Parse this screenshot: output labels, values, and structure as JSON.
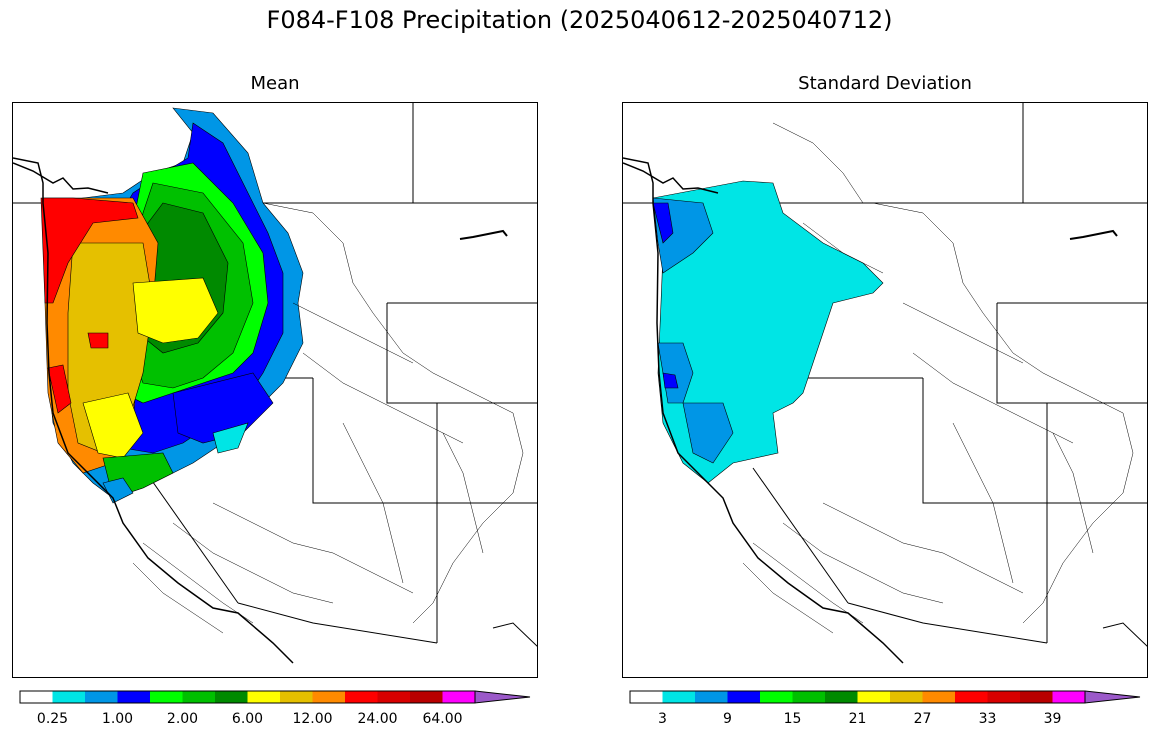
{
  "title": "F084-F108 Precipitation (2025040612-2025040712)",
  "panels": [
    {
      "title": "Mean"
    },
    {
      "title": "Standard Deviation"
    }
  ],
  "palette": [
    "#ffffff",
    "#00e5e5",
    "#0096e6",
    "#0000ff",
    "#00ff00",
    "#00c000",
    "#008a00",
    "#ffff00",
    "#e5c000",
    "#ff8a00",
    "#ff0000",
    "#d80000",
    "#b80000",
    "#ff00ff",
    "#9b59c9"
  ],
  "colorbars": [
    {
      "name": "mean",
      "labels": [
        "0.25",
        "1.00",
        "2.00",
        "6.00",
        "12.00",
        "24.00",
        "64.00"
      ]
    },
    {
      "name": "stdev",
      "labels": [
        "3",
        "9",
        "15",
        "21",
        "27",
        "33",
        "39"
      ]
    }
  ]
}
